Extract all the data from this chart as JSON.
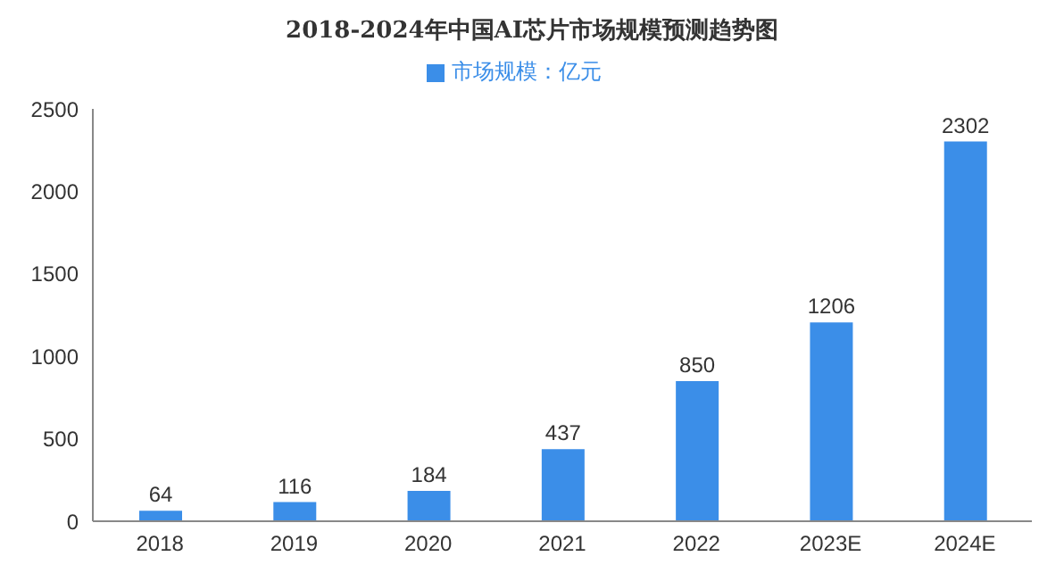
{
  "chart_data": {
    "type": "bar",
    "title": "2018-2024年中国AI芯片市场规模预测趋势图",
    "categories": [
      "2018",
      "2019",
      "2020",
      "2021",
      "2022",
      "2023E",
      "2024E"
    ],
    "series": [
      {
        "name": "市场规模：亿元",
        "color": "#3b8ee8",
        "values": [
          64,
          116,
          184,
          437,
          850,
          1206,
          2302
        ]
      }
    ],
    "ylim": [
      0,
      2500
    ],
    "yticks": [
      0,
      500,
      1000,
      1500,
      2000,
      2500
    ],
    "grid": false,
    "legend": "top",
    "data_labels": true
  }
}
